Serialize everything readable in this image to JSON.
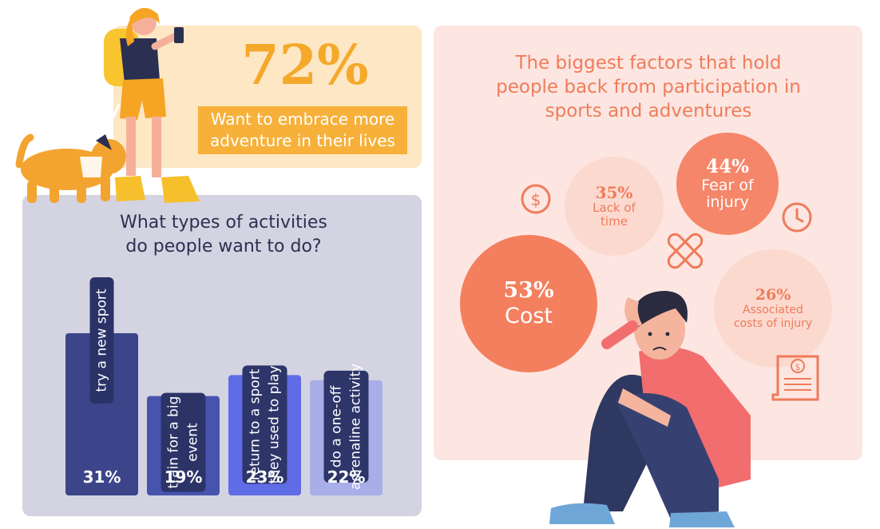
{
  "adventure": {
    "stat": "72%",
    "caption_line1": "Want to embrace more",
    "caption_line2": "adventure in their lives"
  },
  "activities": {
    "title_line1": "What types of activities",
    "title_line2": "do people want to do?"
  },
  "factors": {
    "title_line1": "The biggest factors that hold",
    "title_line2": "people back from participation in",
    "title_line3": "sports and adventures",
    "items": [
      {
        "pct": "53%",
        "label_line1": "Cost",
        "label_line2": ""
      },
      {
        "pct": "35%",
        "label_line1": "Lack of",
        "label_line2": "time"
      },
      {
        "pct": "44%",
        "label_line1": "Fear of",
        "label_line2": "injury"
      },
      {
        "pct": "26%",
        "label_line1": "Associated",
        "label_line2": "costs of injury"
      }
    ]
  },
  "chart_data": {
    "type": "bar",
    "categories": [
      [
        "try a new sport"
      ],
      [
        "train for a big",
        "event"
      ],
      [
        "return to a sport",
        "they used to play"
      ],
      [
        "do a one-off",
        "adrenaline activity"
      ]
    ],
    "values": [
      31,
      19,
      23,
      22
    ],
    "value_labels": [
      "31%",
      "19%",
      "23%",
      "22%"
    ],
    "ylim": [
      0,
      31
    ],
    "colors": [
      "#3c4589",
      "#4654ae",
      "#5f6ce6",
      "#a9aee8"
    ],
    "label_box_colors": [
      "#2b3268",
      "#2c3467",
      "#2d3569",
      "#2d3569"
    ],
    "factors": {
      "type": "bubble",
      "categories": [
        "Cost",
        "Lack of time",
        "Fear of injury",
        "Associated costs of injury"
      ],
      "values": [
        53,
        35,
        44,
        26
      ]
    }
  }
}
